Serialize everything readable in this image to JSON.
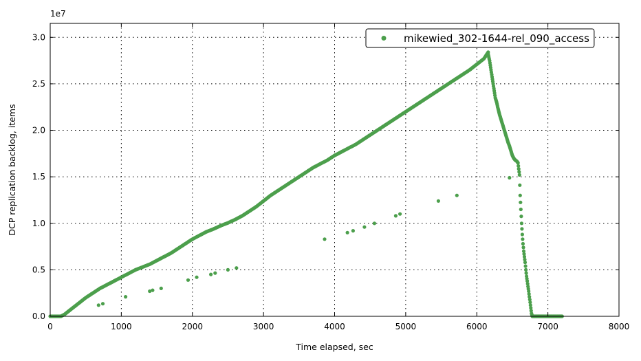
{
  "chart_data": {
    "type": "scatter",
    "title": "",
    "xlabel": "Time elapsed, sec",
    "ylabel": "DCP replication backlog, items",
    "y_offset_label": "1e7",
    "xlim": [
      0,
      8000
    ],
    "ylim": [
      0,
      31500000
    ],
    "xticks": [
      0,
      1000,
      2000,
      3000,
      4000,
      5000,
      6000,
      7000,
      8000
    ],
    "xtick_labels": [
      "0",
      "1000",
      "2000",
      "3000",
      "4000",
      "5000",
      "6000",
      "7000",
      "8000"
    ],
    "yticks": [
      0,
      5000000,
      10000000,
      15000000,
      20000000,
      25000000,
      30000000
    ],
    "ytick_labels": [
      "0.0",
      "0.5",
      "1.0",
      "1.5",
      "2.0",
      "2.5",
      "3.0"
    ],
    "grid": true,
    "legend_position": "top-right",
    "series": [
      {
        "name": "mikewied_302-1644-rel_090_access",
        "color": "#4c9f4c",
        "main_trend": [
          [
            0,
            0
          ],
          [
            150,
            0
          ],
          [
            200,
            200000
          ],
          [
            300,
            800000
          ],
          [
            400,
            1400000
          ],
          [
            500,
            2000000
          ],
          [
            600,
            2500000
          ],
          [
            700,
            3000000
          ],
          [
            800,
            3400000
          ],
          [
            900,
            3800000
          ],
          [
            1000,
            4200000
          ],
          [
            1100,
            4600000
          ],
          [
            1200,
            5000000
          ],
          [
            1300,
            5300000
          ],
          [
            1400,
            5600000
          ],
          [
            1500,
            6000000
          ],
          [
            1600,
            6400000
          ],
          [
            1700,
            6800000
          ],
          [
            1800,
            7300000
          ],
          [
            1900,
            7800000
          ],
          [
            2000,
            8300000
          ],
          [
            2100,
            8700000
          ],
          [
            2200,
            9100000
          ],
          [
            2300,
            9400000
          ],
          [
            2400,
            9750000
          ],
          [
            2500,
            10050000
          ],
          [
            2600,
            10400000
          ],
          [
            2700,
            10800000
          ],
          [
            2800,
            11300000
          ],
          [
            2900,
            11800000
          ],
          [
            3000,
            12400000
          ],
          [
            3100,
            13000000
          ],
          [
            3200,
            13500000
          ],
          [
            3300,
            14000000
          ],
          [
            3400,
            14500000
          ],
          [
            3500,
            15000000
          ],
          [
            3600,
            15500000
          ],
          [
            3700,
            16000000
          ],
          [
            3800,
            16400000
          ],
          [
            3900,
            16800000
          ],
          [
            4000,
            17300000
          ],
          [
            4100,
            17700000
          ],
          [
            4200,
            18100000
          ],
          [
            4300,
            18500000
          ],
          [
            4400,
            19000000
          ],
          [
            4500,
            19500000
          ],
          [
            4600,
            20000000
          ],
          [
            4700,
            20500000
          ],
          [
            4800,
            21000000
          ],
          [
            4900,
            21500000
          ],
          [
            5000,
            22000000
          ],
          [
            5100,
            22500000
          ],
          [
            5200,
            23000000
          ],
          [
            5300,
            23500000
          ],
          [
            5400,
            24000000
          ],
          [
            5500,
            24500000
          ],
          [
            5600,
            25000000
          ],
          [
            5700,
            25500000
          ],
          [
            5800,
            26000000
          ],
          [
            5900,
            26500000
          ],
          [
            6000,
            27100000
          ],
          [
            6100,
            27700000
          ],
          [
            6160,
            28400000
          ]
        ],
        "decline": [
          [
            6160,
            28200000
          ],
          [
            6180,
            27500000
          ],
          [
            6200,
            26500000
          ],
          [
            6220,
            25500000
          ],
          [
            6240,
            24500000
          ],
          [
            6260,
            23500000
          ],
          [
            6280,
            23000000
          ],
          [
            6300,
            22300000
          ],
          [
            6320,
            21700000
          ],
          [
            6340,
            21200000
          ],
          [
            6360,
            20700000
          ],
          [
            6380,
            20200000
          ],
          [
            6400,
            19700000
          ],
          [
            6420,
            19200000
          ],
          [
            6440,
            18700000
          ],
          [
            6460,
            18300000
          ],
          [
            6480,
            17800000
          ],
          [
            6500,
            17300000
          ],
          [
            6520,
            17000000
          ],
          [
            6540,
            16800000
          ],
          [
            6560,
            16700000
          ],
          [
            6580,
            16500000
          ],
          [
            6600,
            15200000
          ],
          [
            6610,
            13000000
          ],
          [
            6620,
            11500000
          ],
          [
            6630,
            10000000
          ],
          [
            6640,
            8800000
          ],
          [
            6650,
            7800000
          ],
          [
            6660,
            7000000
          ],
          [
            6670,
            6400000
          ],
          [
            6680,
            5800000
          ],
          [
            6690,
            5000000
          ],
          [
            6700,
            4300000
          ],
          [
            6710,
            3800000
          ],
          [
            6720,
            3200000
          ],
          [
            6730,
            2700000
          ],
          [
            6740,
            2100000
          ],
          [
            6750,
            1500000
          ],
          [
            6760,
            900000
          ],
          [
            6770,
            300000
          ],
          [
            6780,
            0
          ],
          [
            7200,
            0
          ]
        ],
        "scattered_points": [
          [
            680,
            1200000
          ],
          [
            740,
            1350000
          ],
          [
            1060,
            2100000
          ],
          [
            1400,
            2700000
          ],
          [
            1440,
            2800000
          ],
          [
            1560,
            3000000
          ],
          [
            1940,
            3900000
          ],
          [
            2060,
            4200000
          ],
          [
            2260,
            4500000
          ],
          [
            2320,
            4650000
          ],
          [
            2500,
            5000000
          ],
          [
            2620,
            5200000
          ],
          [
            3860,
            8300000
          ],
          [
            4180,
            9000000
          ],
          [
            4260,
            9200000
          ],
          [
            4420,
            9600000
          ],
          [
            4560,
            10000000
          ],
          [
            4860,
            10800000
          ],
          [
            4920,
            11000000
          ],
          [
            5460,
            12400000
          ],
          [
            5720,
            13000000
          ],
          [
            6460,
            14900000
          ]
        ]
      }
    ]
  }
}
